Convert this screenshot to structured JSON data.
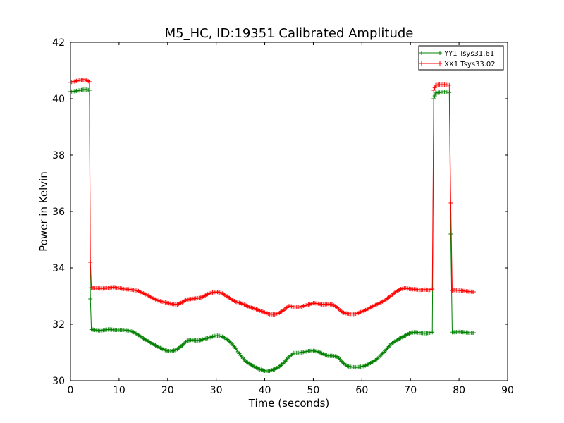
{
  "chart_data": {
    "type": "line",
    "title": "M5_HC, ID:19351 Calibrated Amplitude",
    "xlabel": "Time (seconds)",
    "ylabel": "Power in Kelvin",
    "xlim": [
      0,
      90
    ],
    "ylim": [
      30,
      42
    ],
    "xticks": [
      0,
      10,
      20,
      30,
      40,
      50,
      60,
      70,
      80,
      90
    ],
    "yticks": [
      30,
      32,
      34,
      36,
      38,
      40,
      42
    ],
    "grid": false,
    "legend_position": "top-right",
    "marker": "plus",
    "series": [
      {
        "name": "YY1 Tsys31.61",
        "color": "#008000",
        "x": [
          0,
          1,
          2,
          3,
          3.9,
          4.1,
          4.3,
          5,
          6,
          7,
          8,
          9,
          10,
          11,
          12,
          13,
          14,
          15,
          16,
          17,
          18,
          19,
          20,
          21,
          22,
          23,
          24,
          25,
          26,
          27,
          28,
          29,
          30,
          31,
          32,
          33,
          34,
          35,
          36,
          37,
          38,
          39,
          40,
          41,
          42,
          43,
          44,
          45,
          46,
          47,
          48,
          49,
          50,
          51,
          52,
          53,
          54,
          55,
          56,
          57,
          58,
          59,
          60,
          61,
          62,
          63,
          64,
          65,
          66,
          67,
          68,
          69,
          70,
          71,
          72,
          73,
          74,
          74.5,
          74.8,
          75.2,
          76,
          77,
          78,
          78.3,
          78.6,
          79,
          80,
          81,
          82,
          83
        ],
        "y": [
          40.25,
          40.27,
          40.3,
          40.33,
          40.3,
          32.9,
          31.82,
          31.8,
          31.78,
          31.8,
          31.82,
          31.8,
          31.8,
          31.8,
          31.78,
          31.72,
          31.62,
          31.5,
          31.4,
          31.3,
          31.2,
          31.12,
          31.05,
          31.05,
          31.12,
          31.25,
          31.42,
          31.45,
          31.42,
          31.45,
          31.5,
          31.55,
          31.6,
          31.58,
          31.5,
          31.35,
          31.15,
          30.9,
          30.7,
          30.58,
          30.48,
          30.4,
          30.35,
          30.35,
          30.4,
          30.5,
          30.65,
          30.85,
          30.98,
          30.98,
          31.02,
          31.05,
          31.06,
          31.03,
          30.95,
          30.88,
          30.88,
          30.85,
          30.65,
          30.52,
          30.48,
          30.47,
          30.5,
          30.55,
          30.65,
          30.75,
          30.92,
          31.1,
          31.3,
          31.42,
          31.52,
          31.6,
          31.7,
          31.72,
          31.7,
          31.68,
          31.7,
          31.72,
          40,
          40.2,
          40.22,
          40.25,
          40.22,
          35.2,
          31.72,
          31.72,
          31.73,
          31.72,
          31.7,
          31.7
        ]
      },
      {
        "name": "XX1 Tsys33.02",
        "color": "#ff0000",
        "x": [
          0,
          1,
          2,
          3,
          3.9,
          4.1,
          4.3,
          5,
          6,
          7,
          8,
          9,
          10,
          11,
          12,
          13,
          14,
          15,
          16,
          17,
          18,
          19,
          20,
          21,
          22,
          23,
          24,
          25,
          26,
          27,
          28,
          29,
          30,
          31,
          32,
          33,
          34,
          35,
          36,
          37,
          38,
          39,
          40,
          41,
          42,
          43,
          44,
          45,
          46,
          47,
          48,
          49,
          50,
          51,
          52,
          53,
          54,
          55,
          56,
          57,
          58,
          59,
          60,
          61,
          62,
          63,
          64,
          65,
          66,
          67,
          68,
          69,
          70,
          71,
          72,
          73,
          74,
          74.5,
          74.8,
          75.2,
          76,
          77,
          78,
          78.3,
          78.6,
          79,
          80,
          81,
          82,
          83
        ],
        "y": [
          40.58,
          40.62,
          40.66,
          40.68,
          40.6,
          34.2,
          33.3,
          33.28,
          33.27,
          33.27,
          33.3,
          33.32,
          33.28,
          33.25,
          33.24,
          33.22,
          33.18,
          33.1,
          33.02,
          32.92,
          32.84,
          32.8,
          32.75,
          32.72,
          32.7,
          32.78,
          32.88,
          32.9,
          32.92,
          32.95,
          33.05,
          33.12,
          33.15,
          33.12,
          33.02,
          32.9,
          32.8,
          32.75,
          32.68,
          32.6,
          32.55,
          32.48,
          32.42,
          32.36,
          32.35,
          32.4,
          32.52,
          32.65,
          32.62,
          32.6,
          32.65,
          32.7,
          32.75,
          32.73,
          32.7,
          32.72,
          32.7,
          32.58,
          32.42,
          32.38,
          32.36,
          32.38,
          32.45,
          32.52,
          32.62,
          32.7,
          32.78,
          32.88,
          33.02,
          33.15,
          33.25,
          33.28,
          33.25,
          33.24,
          33.22,
          33.23,
          33.22,
          33.25,
          40.3,
          40.48,
          40.5,
          40.5,
          40.48,
          36.3,
          33.2,
          33.22,
          33.2,
          33.18,
          33.16,
          33.15
        ]
      }
    ]
  }
}
